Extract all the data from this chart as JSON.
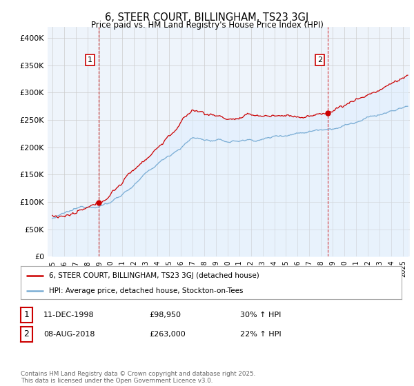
{
  "title": "6, STEER COURT, BILLINGHAM, TS23 3GJ",
  "subtitle": "Price paid vs. HM Land Registry's House Price Index (HPI)",
  "ytick_values": [
    0,
    50000,
    100000,
    150000,
    200000,
    250000,
    300000,
    350000,
    400000
  ],
  "ylim": [
    0,
    420000
  ],
  "xlim_start": 1994.6,
  "xlim_end": 2025.6,
  "sale1_date": 1998.94,
  "sale1_price": 98950,
  "sale2_date": 2018.58,
  "sale2_price": 263000,
  "legend_line1": "6, STEER COURT, BILLINGHAM, TS23 3GJ (detached house)",
  "legend_line2": "HPI: Average price, detached house, Stockton-on-Tees",
  "table_rows": [
    {
      "num": "1",
      "date": "11-DEC-1998",
      "price": "£98,950",
      "hpi": "30% ↑ HPI"
    },
    {
      "num": "2",
      "date": "08-AUG-2018",
      "price": "£263,000",
      "hpi": "22% ↑ HPI"
    }
  ],
  "footer": "Contains HM Land Registry data © Crown copyright and database right 2025.\nThis data is licensed under the Open Government Licence v3.0.",
  "line_red": "#cc0000",
  "line_blue": "#7aadd4",
  "fill_blue": "#ddeeff",
  "grid_color": "#cccccc",
  "background_chart": "#eef4fb",
  "background_fig": "#ffffff"
}
